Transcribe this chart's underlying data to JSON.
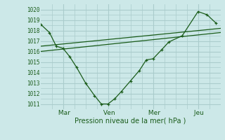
{
  "xlabel": "Pression niveau de la mer( hPa )",
  "bg_color": "#cce8e8",
  "grid_color": "#aacccc",
  "line_color": "#1a5c1a",
  "ylim": [
    1010.5,
    1020.5
  ],
  "yticks": [
    1011,
    1012,
    1013,
    1014,
    1015,
    1016,
    1017,
    1018,
    1019,
    1020
  ],
  "xtick_labels": [
    " Mar",
    " Ven",
    " Mer",
    " Jeu"
  ],
  "xtick_positions": [
    1,
    3,
    5,
    7
  ],
  "vline_positions": [
    1,
    3,
    5,
    7
  ],
  "xlim": [
    0,
    8.0
  ],
  "line1_x": [
    0.0,
    0.4,
    0.7,
    1.0,
    1.3,
    1.6,
    2.0,
    2.4,
    2.7,
    3.0,
    3.3,
    3.6,
    4.0,
    4.4,
    4.7,
    5.0,
    5.4,
    5.7,
    6.3,
    7.0,
    7.4,
    7.8
  ],
  "line1_y": [
    1018.6,
    1017.8,
    1016.5,
    1016.3,
    1015.5,
    1014.5,
    1013.0,
    1011.8,
    1011.0,
    1011.0,
    1011.5,
    1012.2,
    1013.2,
    1014.2,
    1015.2,
    1015.3,
    1016.2,
    1016.9,
    1017.5,
    1019.8,
    1019.5,
    1018.7
  ],
  "line2_x": [
    0.0,
    8.0
  ],
  "line2_y": [
    1016.5,
    1018.2
  ],
  "line3_x": [
    0.0,
    8.0
  ],
  "line3_y": [
    1016.0,
    1017.8
  ],
  "minor_yticks": [
    1011.5,
    1012.5,
    1013.5,
    1014.5,
    1015.5,
    1016.5,
    1017.5,
    1018.5,
    1019.5
  ],
  "minor_vlines": [
    0.5,
    1.5,
    2.0,
    2.5,
    3.5,
    4.0,
    4.5,
    5.5,
    6.0,
    6.5,
    7.5
  ]
}
